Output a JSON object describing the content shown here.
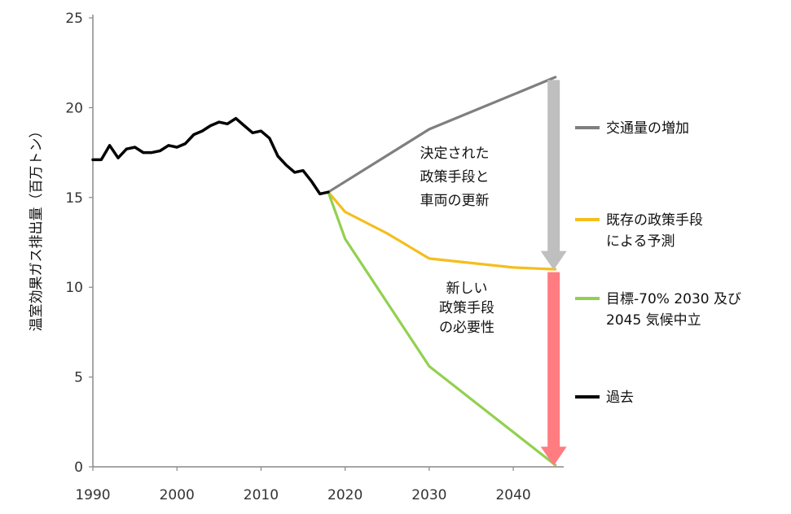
{
  "chart_data": {
    "type": "line",
    "ylabel": "温室効果ガス排出量（百万トン）",
    "xlim": [
      1990,
      2046
    ],
    "ylim": [
      0,
      25
    ],
    "x_ticks": [
      "1990",
      "2000",
      "2010",
      "2020",
      "2030",
      "2040"
    ],
    "y_ticks": [
      "0",
      "5",
      "10",
      "15",
      "20",
      "25"
    ],
    "grid": false,
    "legend_position": "right",
    "series": [
      {
        "name": "交通量の増加",
        "color": "#7f7f7f",
        "points": [
          [
            2018,
            15.3
          ],
          [
            2030,
            18.8
          ],
          [
            2045,
            21.7
          ]
        ]
      },
      {
        "name": "既存の政策手段による予測",
        "color": "#f5be1c",
        "points": [
          [
            2018,
            15.3
          ],
          [
            2020,
            14.2
          ],
          [
            2025,
            13.0
          ],
          [
            2030,
            11.6
          ],
          [
            2040,
            11.1
          ],
          [
            2045,
            11.0
          ]
        ]
      },
      {
        "name": "目標-70% 2030 及び2045 気候中立",
        "color": "#92d050",
        "points": [
          [
            2018,
            15.3
          ],
          [
            2020,
            12.7
          ],
          [
            2030,
            5.6
          ],
          [
            2045,
            0.1
          ]
        ]
      },
      {
        "name": "過去",
        "color": "#000000",
        "points": [
          [
            1990,
            17.1
          ],
          [
            1991,
            17.1
          ],
          [
            1992,
            17.9
          ],
          [
            1993,
            17.2
          ],
          [
            1994,
            17.7
          ],
          [
            1995,
            17.8
          ],
          [
            1996,
            17.5
          ],
          [
            1997,
            17.5
          ],
          [
            1998,
            17.6
          ],
          [
            1999,
            17.9
          ],
          [
            2000,
            17.8
          ],
          [
            2001,
            18.0
          ],
          [
            2002,
            18.5
          ],
          [
            2003,
            18.7
          ],
          [
            2004,
            19.0
          ],
          [
            2005,
            19.2
          ],
          [
            2006,
            19.1
          ],
          [
            2007,
            19.4
          ],
          [
            2008,
            19.0
          ],
          [
            2009,
            18.6
          ],
          [
            2010,
            18.7
          ],
          [
            2011,
            18.3
          ],
          [
            2012,
            17.3
          ],
          [
            2013,
            16.8
          ],
          [
            2014,
            16.4
          ],
          [
            2015,
            16.5
          ],
          [
            2016,
            15.9
          ],
          [
            2017,
            15.2
          ],
          [
            2018,
            15.3
          ]
        ]
      }
    ],
    "legend": [
      {
        "lines": [
          "交通量の増加"
        ],
        "color": "#7f7f7f"
      },
      {
        "lines": [
          "既存の政策手段",
          "による予測"
        ],
        "color": "#f5be1c"
      },
      {
        "lines": [
          "目標-70% 2030 及び",
          "2045 気候中立"
        ],
        "color": "#92d050"
      },
      {
        "lines": [
          "過去"
        ],
        "color": "#000000"
      }
    ],
    "arrows": [
      {
        "from_y": 21.7,
        "to_y": 11.0,
        "x": 2045,
        "color": "#bfbfbf"
      },
      {
        "from_y": 11.0,
        "to_y": 0.1,
        "x": 2045,
        "color": "#ff7c80"
      }
    ],
    "annotations": [
      {
        "lines": [
          "決定された",
          "政策手段と",
          "車両の更新"
        ]
      },
      {
        "lines": [
          "新しい",
          "政策手段",
          "の必要性"
        ]
      }
    ]
  }
}
